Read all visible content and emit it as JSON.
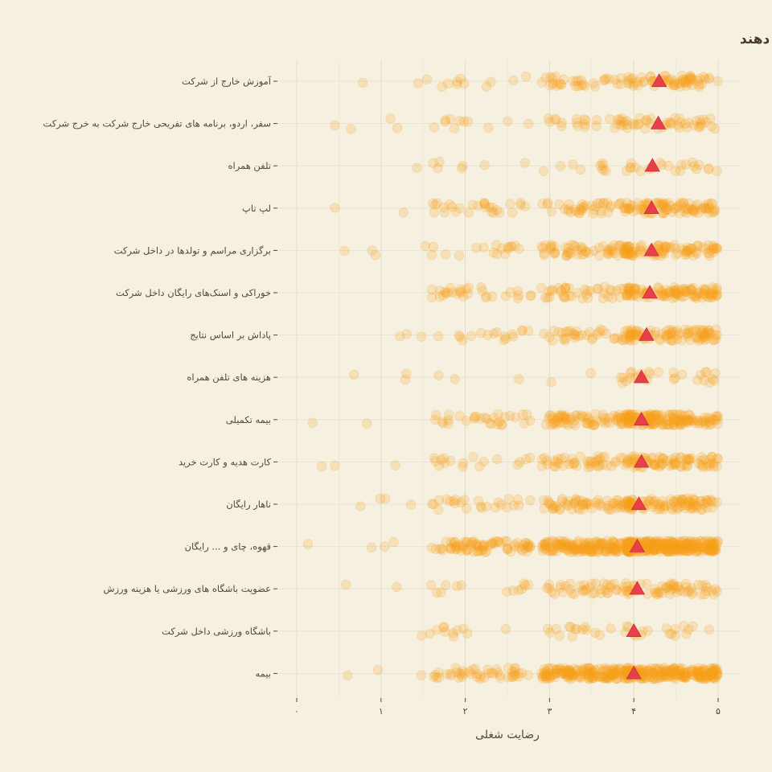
{
  "chart_data": {
    "type": "scatter",
    "title": "رضایت شغلی توسعه دهنده ها و امکاناتی که شرکت ها  در اختیار آن ها قرار می دهند",
    "xlabel": "رضایت شغلی",
    "ylabel": "",
    "xlim": [
      0,
      5
    ],
    "x_ticks": [
      0,
      1,
      2,
      3,
      4,
      5
    ],
    "x_tick_labels": [
      "۰",
      "۱",
      "۲",
      "۳",
      "۴",
      "۵"
    ],
    "grid": true,
    "point_color": "#f9a11b",
    "mean_color": "#e8404a",
    "categories": [
      {
        "label": "آموزش خارج از شرکت",
        "mean": 4.3,
        "n": 110,
        "min": 0.25
      },
      {
        "label": "سفر، اردو، برنامه های تفریحی خارج شرکت به خرج شرکت",
        "mean": 4.29,
        "n": 80,
        "min": 0.4
      },
      {
        "label": "تلفن همراه",
        "mean": 4.22,
        "n": 40,
        "min": 1.35
      },
      {
        "label": "لپ تاپ",
        "mean": 4.21,
        "n": 160,
        "min": 0.45
      },
      {
        "label": "برگزاری مراسم و تولدها در داخل شرکت",
        "mean": 4.21,
        "n": 170,
        "min": 0.5
      },
      {
        "label": "خوراکی و اسنک‌های رایگان داخل شرکت",
        "mean": 4.19,
        "n": 180,
        "min": 1.15
      },
      {
        "label": "پاداش بر اساس نتایج",
        "mean": 4.15,
        "n": 150,
        "min": 0.9
      },
      {
        "label": "هزینه های تلفن همراه",
        "mean": 4.09,
        "n": 35,
        "min": 0.65
      },
      {
        "label": "بیمه تکمیلی",
        "mean": 4.09,
        "n": 260,
        "min": 0.1
      },
      {
        "label": "کارت هدیه و کارت خرید",
        "mean": 4.09,
        "n": 150,
        "min": 0.25
      },
      {
        "label": "ناهار رایگان",
        "mean": 4.06,
        "n": 190,
        "min": 0.5
      },
      {
        "label": "قهوه، چای و ... رایگان",
        "mean": 4.04,
        "n": 520,
        "min": 0.0
      },
      {
        "label": "عضویت باشگاه های ورزشی یا هزینه ورزش",
        "mean": 4.04,
        "n": 110,
        "min": 0.2
      },
      {
        "label": "باشگاه ورزشی داخل شرکت",
        "mean": 4.0,
        "n": 45,
        "min": 1.05
      },
      {
        "label": "بیمه",
        "mean": 4.0,
        "n": 420,
        "min": 0.15
      }
    ]
  }
}
